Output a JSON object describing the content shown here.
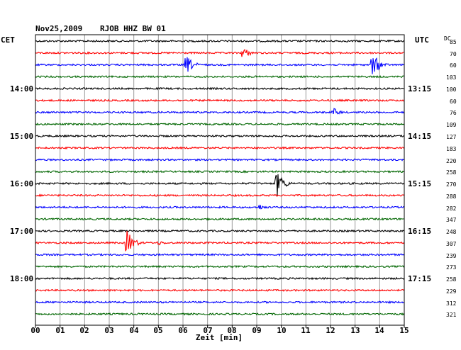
{
  "header": {
    "date": "Nov25,2009",
    "station": "RJOB HHZ BW 01",
    "left_tz": "CET",
    "right_tz": "UTC",
    "dc_label": "DC"
  },
  "left_time_labels": [
    "14:00",
    "15:00",
    "16:00",
    "17:00",
    "18:00"
  ],
  "right_time_labels": [
    "13:15",
    "14:15",
    "15:15",
    "16:15",
    "17:15"
  ],
  "dc_values": [
    "85",
    "70",
    "60",
    "103",
    "100",
    "60",
    "76",
    "109",
    "127",
    "183",
    "220",
    "258",
    "270",
    "288",
    "282",
    "347",
    "248",
    "307",
    "239",
    "273",
    "258",
    "229",
    "312",
    "321"
  ],
  "x_ticks": [
    "00",
    "01",
    "02",
    "03",
    "04",
    "05",
    "06",
    "07",
    "08",
    "09",
    "10",
    "11",
    "12",
    "13",
    "14",
    "15"
  ],
  "x_axis_title": "Zeit [min]",
  "trace_colors": [
    "#000000",
    "#ff0000",
    "#0000ff",
    "#006600"
  ],
  "chart_data": {
    "type": "line",
    "title": "Nov25,2009 RJOB HHZ BW 01",
    "xlabel": "Zeit [min]",
    "xlim": [
      0,
      15
    ],
    "line_count": 24,
    "minutes_per_line": 15,
    "events": [
      {
        "line": 1,
        "minute": 8.4,
        "amp": 10
      },
      {
        "line": 2,
        "minute": 6.1,
        "amp": 16
      },
      {
        "line": 2,
        "minute": 13.7,
        "amp": 18
      },
      {
        "line": 6,
        "minute": 12.1,
        "amp": 7
      },
      {
        "line": 12,
        "minute": 9.8,
        "amp": 20
      },
      {
        "line": 14,
        "minute": 9.1,
        "amp": 5
      },
      {
        "line": 17,
        "minute": 3.7,
        "amp": 20
      },
      {
        "line": 17,
        "minute": 5.0,
        "amp": 4
      }
    ]
  }
}
